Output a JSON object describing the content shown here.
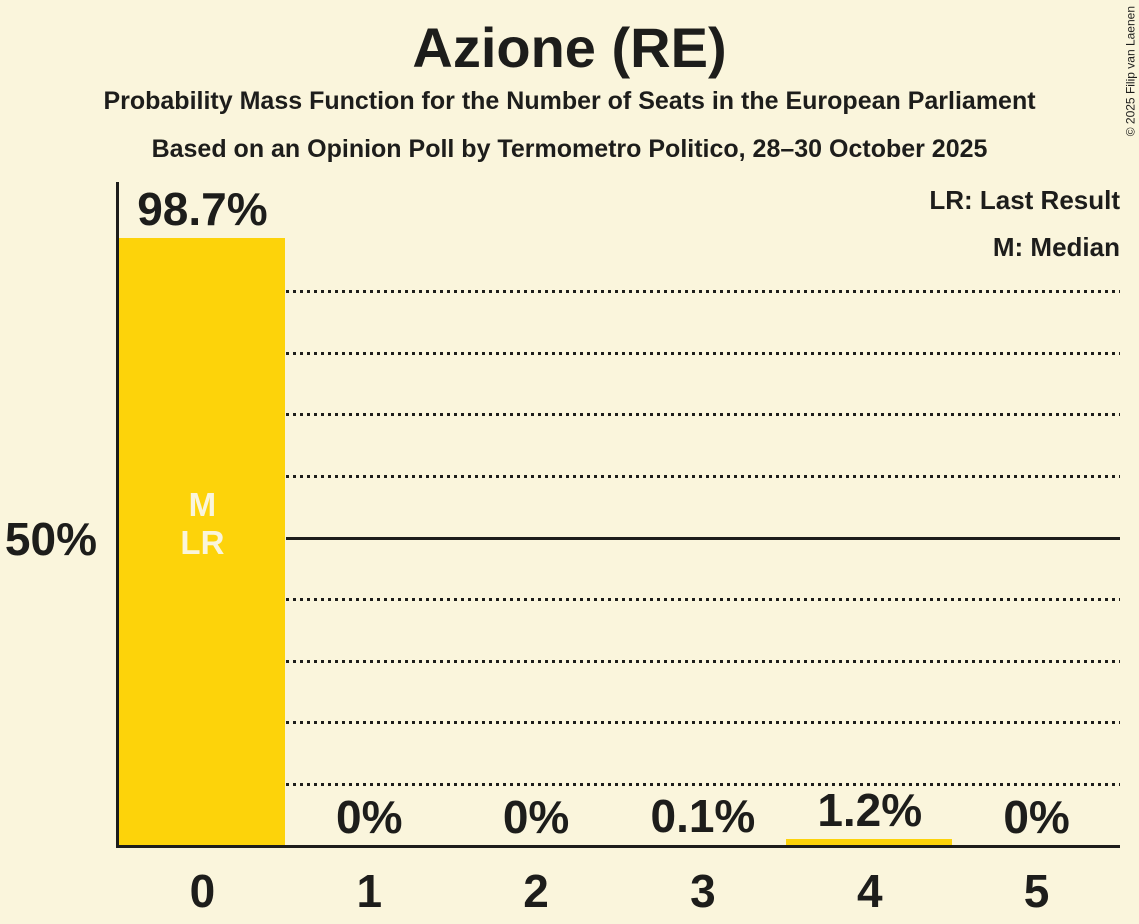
{
  "title": "Azione (RE)",
  "subtitle": "Probability Mass Function for the Number of Seats in the European Parliament",
  "source_line": "Based on an Opinion Poll by Termometro Politico, 28–30 October 2025",
  "copyright": "© 2025 Filip van Laenen",
  "legend": {
    "last_result": "LR: Last Result",
    "median": "M: Median"
  },
  "y_axis": {
    "tick_label": "50%"
  },
  "colors": {
    "background": "#FAF5DC",
    "bar": "#FDD30A",
    "text": "#1D1D1B",
    "bar_label_text": "#FAF5DC"
  },
  "chart_data": {
    "type": "bar",
    "title": "Azione (RE)",
    "categories": [
      "0",
      "1",
      "2",
      "3",
      "4",
      "5"
    ],
    "values": [
      98.7,
      0,
      0,
      0.1,
      1.2,
      0
    ],
    "value_labels": [
      "98.7%",
      "0%",
      "0%",
      "0.1%",
      "1.2%",
      "0%"
    ],
    "ylim": [
      0,
      100
    ],
    "y_gridline_step_pct": 10,
    "y_solid_line_pct": 50,
    "y_tick_labels": [
      "50%"
    ],
    "grid": "dotted horizontal",
    "legend_position": "top-right",
    "legend_entries": [
      "LR: Last Result",
      "M: Median"
    ],
    "in_bar_annotations": {
      "category": "0",
      "lines": [
        "M",
        "LR"
      ]
    }
  }
}
